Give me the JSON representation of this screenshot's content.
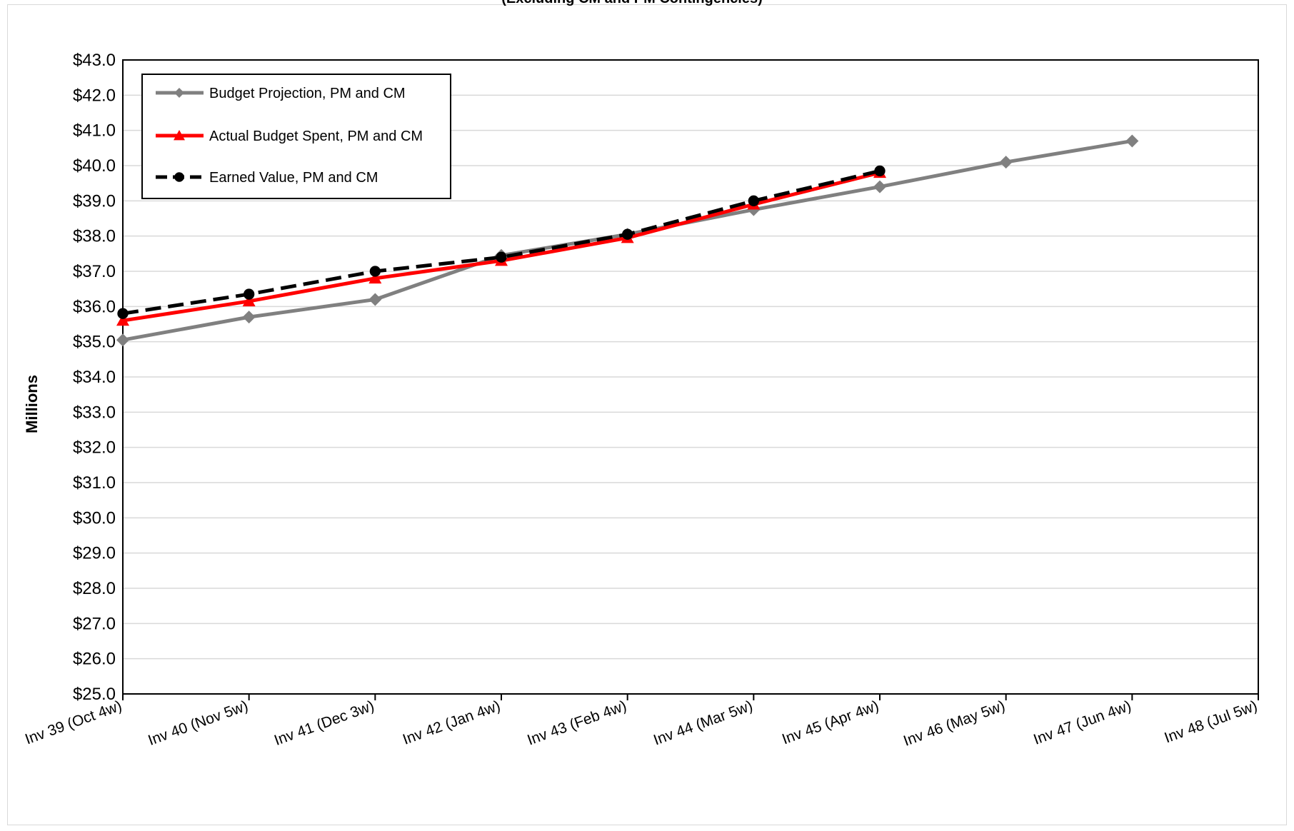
{
  "chart_data": {
    "type": "line",
    "title": "(Excluding CM and PM Contingencies)",
    "xlabel": "",
    "ylabel": "Millions",
    "ylim": [
      25,
      43
    ],
    "y_step": 1,
    "y_tick_format": "$%.1f",
    "grid": "horizontal",
    "legend_position": "top-left",
    "categories": [
      "Inv 39 (Oct 4w)",
      "Inv 40 (Nov 5w)",
      "Inv 41 (Dec 3w)",
      "Inv 42 (Jan 4w)",
      "Inv 43 (Feb 4w)",
      "Inv 44 (Mar 5w)",
      "Inv 45 (Apr 4w)",
      "Inv 46 (May 5w)",
      "Inv 47 (Jun 4w)",
      "Inv 48 (Jul 5w)"
    ],
    "series": [
      {
        "name": "Budget Projection, PM and CM",
        "color": "#808080",
        "marker": "diamond",
        "dash": "solid",
        "values": [
          35.05,
          35.7,
          36.2,
          37.45,
          38.05,
          38.75,
          39.4,
          40.1,
          40.7,
          null
        ]
      },
      {
        "name": "Actual Budget Spent, PM and CM",
        "color": "#ff0000",
        "marker": "triangle",
        "dash": "solid",
        "values": [
          35.6,
          36.15,
          36.8,
          37.3,
          37.95,
          38.9,
          39.8,
          null,
          null,
          null
        ]
      },
      {
        "name": "Earned Value, PM and CM",
        "color": "#000000",
        "marker": "circle",
        "dash": "dashed",
        "values": [
          35.8,
          36.35,
          37.0,
          37.4,
          38.05,
          39.0,
          39.85,
          null,
          null,
          null
        ]
      }
    ]
  }
}
